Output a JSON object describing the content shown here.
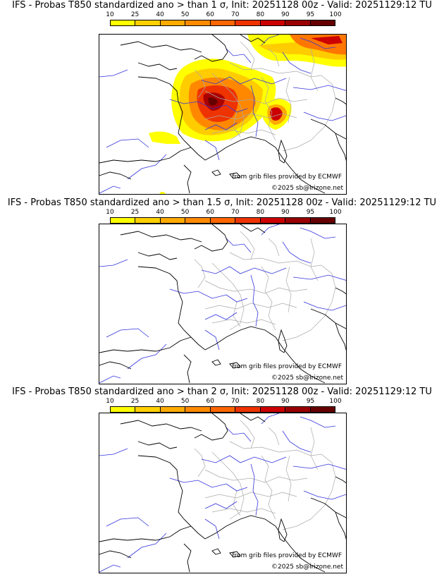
{
  "colors": {
    "scale": [
      "#ffff00",
      "#ffd000",
      "#ffaa00",
      "#ff8a00",
      "#ff6600",
      "#ee3300",
      "#cc0000",
      "#990000",
      "#660000"
    ],
    "coast": "#000000",
    "borders": "#999999",
    "rivers": "#2222dd"
  },
  "legend": {
    "ticks": [
      "10",
      "25",
      "40",
      "50",
      "60",
      "70",
      "80",
      "90",
      "95",
      "100"
    ]
  },
  "panels": [
    {
      "title": "IFS - Probas T850  standardized ano > than 1 σ, Init: 20251128 00z - Valid: 20251129:12 TU",
      "source_text": "from grib files provided by ECMWF",
      "copyright": "©2025 sb@irizone.net"
    },
    {
      "title": "IFS - Probas T850  standardized ano > than 1.5 σ, Init: 20251128 00z - Valid: 20251129:12 TU",
      "source_text": "from grib files provided by ECMWF",
      "copyright": "©2025 sb@irizone.net"
    },
    {
      "title": "IFS - Probas T850  standardized ano > than 2 σ, Init: 20251128 00z - Valid: 20251129:12 TU",
      "source_text": "from grib files provided by ECMWF",
      "copyright": "©2025 sb@irizone.net"
    }
  ]
}
